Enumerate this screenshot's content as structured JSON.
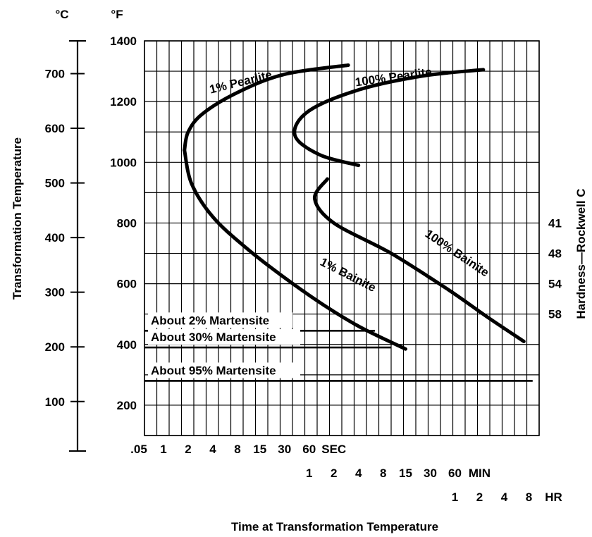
{
  "chart_data": {
    "type": "line",
    "title": "",
    "xlabel": "Time at Transformation Temperature",
    "ylabel_left": "Transformation Temperature",
    "ylabel_right": "Hardness—Rockwell C",
    "units": {
      "celsius": "°C",
      "fahrenheit": "°F"
    },
    "x_scale": "log (logarithmic time)",
    "grid": true,
    "y_fahrenheit_ticks": [
      {
        "label": "1400",
        "value": 1400
      },
      {
        "label": "1200",
        "value": 1200
      },
      {
        "label": "1000",
        "value": 1000
      },
      {
        "label": "800",
        "value": 800
      },
      {
        "label": "600",
        "value": 600
      },
      {
        "label": "400",
        "value": 400
      },
      {
        "label": "200",
        "value": 200
      }
    ],
    "y_celsius_ticks": [
      {
        "label": "700",
        "value": 700
      },
      {
        "label": "600",
        "value": 600
      },
      {
        "label": "500",
        "value": 500
      },
      {
        "label": "400",
        "value": 400
      },
      {
        "label": "300",
        "value": 300
      },
      {
        "label": "200",
        "value": 200
      },
      {
        "label": "100",
        "value": 100
      }
    ],
    "hardness_ticks": [
      {
        "label": "41",
        "f": 800
      },
      {
        "label": "48",
        "f": 700
      },
      {
        "label": "54",
        "f": 600
      },
      {
        "label": "58",
        "f": 500
      }
    ],
    "x_tick_rows": [
      {
        "unit_label": "SEC",
        "unit_seconds": 1,
        "ticks": [
          {
            "label": ".05",
            "seconds": 0.05
          },
          {
            "label": "1",
            "seconds": 1
          },
          {
            "label": "2",
            "seconds": 2
          },
          {
            "label": "4",
            "seconds": 4
          },
          {
            "label": "8",
            "seconds": 8
          },
          {
            "label": "15",
            "seconds": 15
          },
          {
            "label": "30",
            "seconds": 30
          },
          {
            "label": "60",
            "seconds": 60
          }
        ]
      },
      {
        "unit_label": "MIN",
        "unit_seconds": 60,
        "ticks": [
          {
            "label": "1",
            "seconds": 60
          },
          {
            "label": "2",
            "seconds": 120
          },
          {
            "label": "4",
            "seconds": 240
          },
          {
            "label": "8",
            "seconds": 480
          },
          {
            "label": "15",
            "seconds": 900
          },
          {
            "label": "30",
            "seconds": 1800
          },
          {
            "label": "60",
            "seconds": 3600
          }
        ]
      },
      {
        "unit_label": "HR",
        "unit_seconds": 3600,
        "ticks": [
          {
            "label": "1",
            "seconds": 3600
          },
          {
            "label": "2",
            "seconds": 7200
          },
          {
            "label": "4",
            "seconds": 14400
          },
          {
            "label": "8",
            "seconds": 28800
          }
        ]
      }
    ],
    "series": [
      {
        "name": "1% Pearlite",
        "points": [
          {
            "t": 1.8,
            "f": 1040
          },
          {
            "t": 2,
            "f": 1100
          },
          {
            "t": 3,
            "f": 1160
          },
          {
            "t": 8,
            "f": 1230
          },
          {
            "t": 30,
            "f": 1290
          },
          {
            "t": 180,
            "f": 1320
          }
        ]
      },
      {
        "name": "1% Bainite",
        "points": [
          {
            "t": 1.8,
            "f": 1040
          },
          {
            "t": 2.2,
            "f": 930
          },
          {
            "t": 4,
            "f": 820
          },
          {
            "t": 10,
            "f": 720
          },
          {
            "t": 30,
            "f": 620
          },
          {
            "t": 90,
            "f": 530
          },
          {
            "t": 260,
            "f": 455
          },
          {
            "t": 900,
            "f": 385
          }
        ]
      },
      {
        "name": "100% Pearlite",
        "points": [
          {
            "t": 240,
            "f": 990
          },
          {
            "t": 80,
            "f": 1025
          },
          {
            "t": 40,
            "f": 1090
          },
          {
            "t": 60,
            "f": 1170
          },
          {
            "t": 250,
            "f": 1240
          },
          {
            "t": 1500,
            "f": 1285
          },
          {
            "t": 8000,
            "f": 1305
          }
        ]
      },
      {
        "name": "100% Bainite",
        "points": [
          {
            "t": 100,
            "f": 945
          },
          {
            "t": 70,
            "f": 880
          },
          {
            "t": 120,
            "f": 800
          },
          {
            "t": 600,
            "f": 700
          },
          {
            "t": 3000,
            "f": 580
          },
          {
            "t": 9000,
            "f": 490
          },
          {
            "t": 25000,
            "f": 410
          }
        ]
      }
    ],
    "curve_labels": [
      {
        "text": "1% Pearlite",
        "t": 9,
        "f": 1252,
        "rotate": -14
      },
      {
        "text": "100% Pearlite",
        "t": 650,
        "f": 1268,
        "rotate": -8
      },
      {
        "text": "1% Bainite",
        "t": 170,
        "f": 618,
        "rotate": 27
      },
      {
        "text": "100% Bainite",
        "t": 3600,
        "f": 690,
        "rotate": 34
      }
    ],
    "martensite_lines": [
      {
        "label": "About 2% Martensite",
        "f": 445,
        "t_end": 380
      },
      {
        "label": "About 30% Martensite",
        "f": 390,
        "t_end": 600
      },
      {
        "label": "About 95% Martensite",
        "f": 280,
        "t_end": 32000
      }
    ]
  }
}
